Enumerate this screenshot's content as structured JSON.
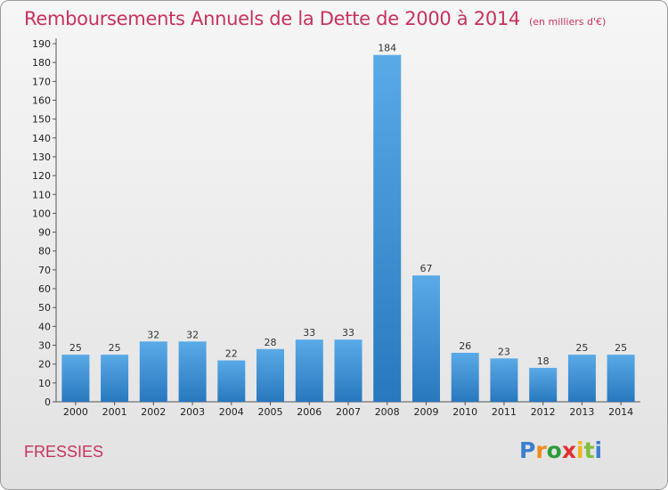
{
  "title": "Remboursements Annuels de la Dette de 2000 à 2014",
  "subtitle": "(en milliers d'€)",
  "commune": "FRESSIES",
  "logo": {
    "letters": [
      "P",
      "r",
      "o",
      "x",
      "i",
      "t",
      "i"
    ],
    "colors": [
      "#3b7fd0",
      "#f28a1c",
      "#2f9a3b",
      "#e0322d",
      "#f0b41c",
      "#7fbf3a",
      "#3b7fd0"
    ]
  },
  "colors": {
    "title": "#c8325c",
    "bar_light": "#5aaae8",
    "bar_dark": "#2878be"
  },
  "chart_data": {
    "type": "bar",
    "categories": [
      "2000",
      "2001",
      "2002",
      "2003",
      "2004",
      "2005",
      "2006",
      "2007",
      "2008",
      "2009",
      "2010",
      "2011",
      "2012",
      "2013",
      "2014"
    ],
    "values": [
      25,
      25,
      32,
      32,
      22,
      28,
      33,
      33,
      184,
      67,
      26,
      23,
      18,
      25,
      25
    ],
    "ylim": [
      0,
      190
    ],
    "ytick_step": 10,
    "grid": false,
    "xlabel": "",
    "ylabel": ""
  }
}
